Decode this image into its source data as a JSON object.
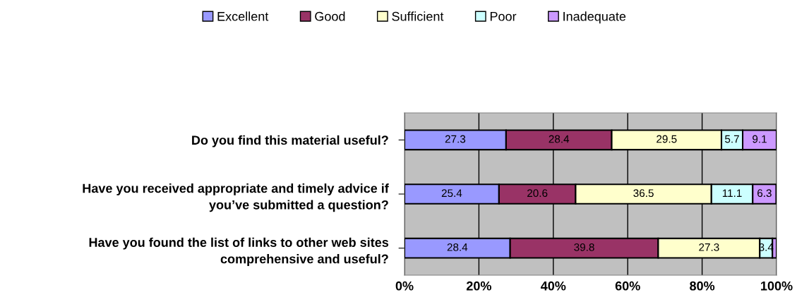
{
  "chart_data": {
    "type": "bar",
    "orientation": "horizontal",
    "stacked": true,
    "categories": [
      "Do you find this material useful?",
      "Have you received appropriate and timely advice if\nyou’ve submitted a question?",
      "Have you found the list of links to other web sites\ncomprehensive and useful?"
    ],
    "series": [
      {
        "name": "Excellent",
        "color": "#9999ff",
        "values": [
          27.3,
          25.4,
          28.4
        ],
        "value_labels": [
          "27.3",
          "25.4",
          "28.4"
        ]
      },
      {
        "name": "Good",
        "color": "#993366",
        "values": [
          28.4,
          20.6,
          39.8
        ],
        "value_labels": [
          "28.4",
          "20.6",
          "39.8"
        ]
      },
      {
        "name": "Sufficient",
        "color": "#ffffcc",
        "values": [
          29.5,
          36.5,
          27.3
        ],
        "value_labels": [
          "29.5",
          "36.5",
          "27.3"
        ]
      },
      {
        "name": "Poor",
        "color": "#ccffff",
        "values": [
          5.7,
          11.1,
          3.4
        ],
        "value_labels": [
          "5.7",
          "11.1",
          "3.4"
        ]
      },
      {
        "name": "Inadequate",
        "color": "#cc99ff",
        "values": [
          9.1,
          6.3,
          1.1
        ],
        "value_labels": [
          "9.1",
          "6.3",
          null
        ]
      }
    ],
    "xlim": [
      0,
      100
    ],
    "xticks": [
      {
        "value": 0,
        "label": "0%"
      },
      {
        "value": 20,
        "label": "20%"
      },
      {
        "value": 40,
        "label": "40%"
      },
      {
        "value": 60,
        "label": "60%"
      },
      {
        "value": 80,
        "label": "80%"
      },
      {
        "value": 100,
        "label": "100%"
      }
    ],
    "grid": "x",
    "legend": "top"
  }
}
